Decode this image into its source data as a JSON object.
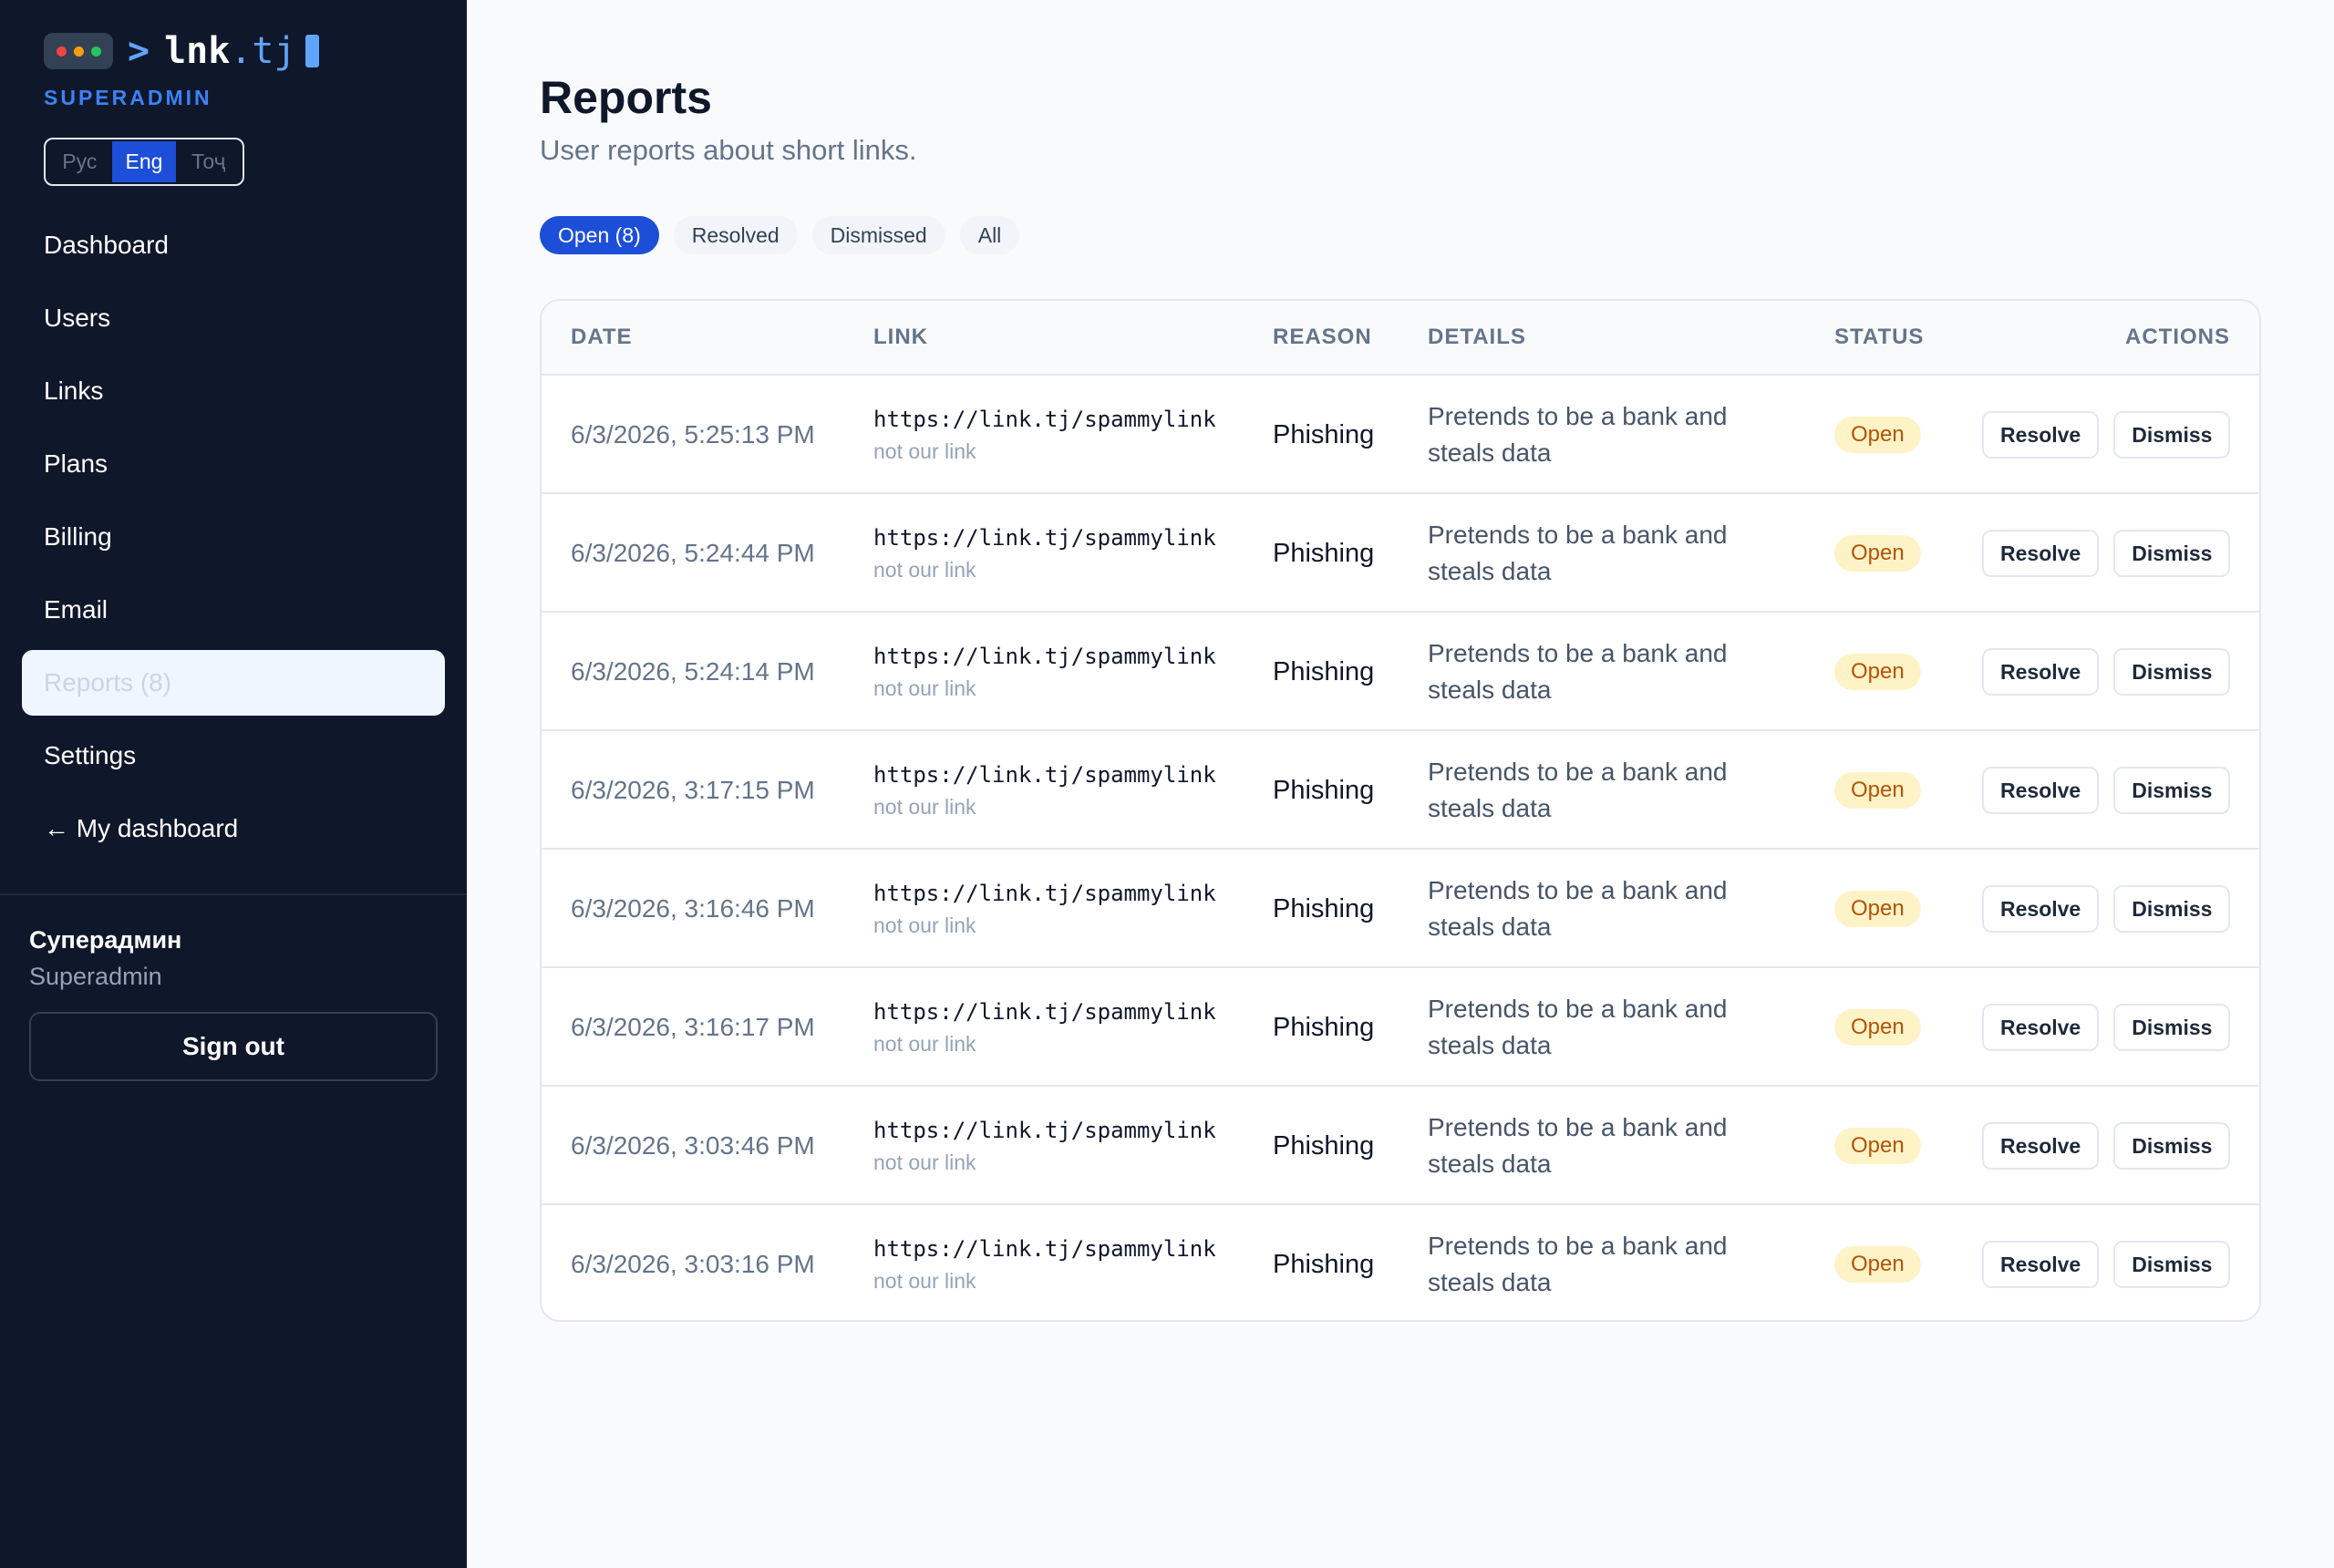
{
  "sidebar": {
    "logo": {
      "prompt": ">",
      "name": "lnk",
      "tld": ".tj",
      "dot_colors": [
        "#ef4444",
        "#f59e0b",
        "#22c55e"
      ]
    },
    "role_label": "SUPERADMIN",
    "languages": [
      {
        "label": "Рус",
        "active": false
      },
      {
        "label": "Eng",
        "active": true
      },
      {
        "label": "Тоҷ",
        "active": false
      }
    ],
    "nav": [
      {
        "label": "Dashboard",
        "active": false
      },
      {
        "label": "Users",
        "active": false
      },
      {
        "label": "Links",
        "active": false
      },
      {
        "label": "Plans",
        "active": false
      },
      {
        "label": "Billing",
        "active": false
      },
      {
        "label": "Email",
        "active": false
      },
      {
        "label": "Reports (8)",
        "active": true
      },
      {
        "label": "Settings",
        "active": false
      },
      {
        "label": "← My dashboard",
        "active": false
      }
    ],
    "user": {
      "name": "Суперадмин",
      "role": "Superadmin"
    },
    "signout_label": "Sign out"
  },
  "main": {
    "title": "Reports",
    "subtitle": "User reports about short links.",
    "filters": [
      {
        "label": "Open (8)",
        "active": true
      },
      {
        "label": "Resolved",
        "active": false
      },
      {
        "label": "Dismissed",
        "active": false
      },
      {
        "label": "All",
        "active": false
      }
    ],
    "columns": [
      "DATE",
      "LINK",
      "REASON",
      "DETAILS",
      "STATUS",
      "ACTIONS"
    ],
    "resolve_label": "Resolve",
    "dismiss_label": "Dismiss",
    "rows": [
      {
        "date": "6/3/2026, 5:25:13 PM",
        "url": "https://link.tj/spammylink",
        "note": "not our link",
        "reason": "Phishing",
        "details": "Pretends to be a bank and steals data",
        "status": "Open"
      },
      {
        "date": "6/3/2026, 5:24:44 PM",
        "url": "https://link.tj/spammylink",
        "note": "not our link",
        "reason": "Phishing",
        "details": "Pretends to be a bank and steals data",
        "status": "Open"
      },
      {
        "date": "6/3/2026, 5:24:14 PM",
        "url": "https://link.tj/spammylink",
        "note": "not our link",
        "reason": "Phishing",
        "details": "Pretends to be a bank and steals data",
        "status": "Open"
      },
      {
        "date": "6/3/2026, 3:17:15 PM",
        "url": "https://link.tj/spammylink",
        "note": "not our link",
        "reason": "Phishing",
        "details": "Pretends to be a bank and steals data",
        "status": "Open"
      },
      {
        "date": "6/3/2026, 3:16:46 PM",
        "url": "https://link.tj/spammylink",
        "note": "not our link",
        "reason": "Phishing",
        "details": "Pretends to be a bank and steals data",
        "status": "Open"
      },
      {
        "date": "6/3/2026, 3:16:17 PM",
        "url": "https://link.tj/spammylink",
        "note": "not our link",
        "reason": "Phishing",
        "details": "Pretends to be a bank and steals data",
        "status": "Open"
      },
      {
        "date": "6/3/2026, 3:03:46 PM",
        "url": "https://link.tj/spammylink",
        "note": "not our link",
        "reason": "Phishing",
        "details": "Pretends to be a bank and steals data",
        "status": "Open"
      },
      {
        "date": "6/3/2026, 3:03:16 PM",
        "url": "https://link.tj/spammylink",
        "note": "not our link",
        "reason": "Phishing",
        "details": "Pretends to be a bank and steals data",
        "status": "Open"
      }
    ]
  }
}
